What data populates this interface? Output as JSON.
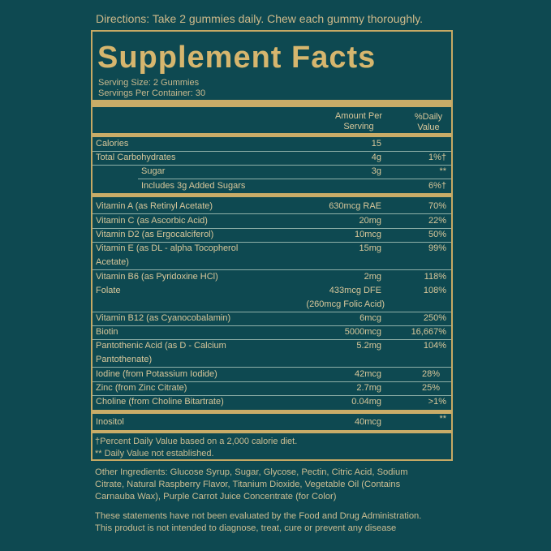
{
  "directions": "Directions: Take 2 gummies daily. Chew each gummy thoroughly.",
  "title": "Supplement Facts",
  "serving_size": "Serving Size: 2 Gummies",
  "servings_per_container": "Servings Per Container: 30",
  "header": {
    "amount": "Amount Per",
    "amount2": "Serving",
    "dv": "%Daily",
    "dv2": "Value"
  },
  "rows": [
    {
      "name": "Calories",
      "amount": "15",
      "dv": ""
    },
    {
      "name": "Total Carbohydrates",
      "amount": "4g",
      "dv": "1%†"
    },
    {
      "name": "Sugar",
      "amount": "3g",
      "dv": "**"
    },
    {
      "name": "Includes 3g Added Sugars",
      "amount": "",
      "dv": "6%†"
    },
    {
      "name": "Vitamin A (as Retinyl Acetate)",
      "amount": "630mcg RAE",
      "dv": "70%"
    },
    {
      "name": "Vitamin C (as Ascorbic Acid)",
      "amount": "20mg",
      "dv": "22%"
    },
    {
      "name": "Vitamin D2 (as Ergocalciferol)",
      "amount": "10mcg",
      "dv": "50%"
    },
    {
      "name": "Vitamin E (as DL - alpha Tocopherol",
      "name2": "Acetate)",
      "amount": "15mg",
      "dv": "99%"
    },
    {
      "name": "Vitamin B6 (as Pyridoxine HCl)",
      "amount": "2mg",
      "dv": "118%"
    },
    {
      "name": "Folate",
      "amount": "433mcg DFE",
      "amount2": "(260mcg Folic Acid)",
      "dv": "108%"
    },
    {
      "name": "Vitamin B12 (as Cyanocobalamin)",
      "amount": "6mcg",
      "dv": "250%"
    },
    {
      "name": "Biotin",
      "amount": "5000mcg",
      "dv": "16,667%"
    },
    {
      "name": "Pantothenic Acid (as D - Calcium",
      "name2": "Pantothenate)",
      "amount": "5.2mg",
      "dv": "104%"
    },
    {
      "name": "Iodine (from Potassium Iodide)",
      "amount": "42mcg",
      "dv": "28%"
    },
    {
      "name": "Zinc (from Zinc Citrate)",
      "amount": "2.7mg",
      "dv": "25%"
    },
    {
      "name": "Choline (from Choline Bitartrate)",
      "amount": "0.04mg",
      "dv": ">1%"
    },
    {
      "name": "Inositol",
      "amount": "40mcg",
      "dv": "**"
    }
  ],
  "footnotes": [
    "†Percent Daily Value based on a 2,000 calorie diet.",
    "** Daily Value not established."
  ],
  "other_ingredients": [
    "Other Ingredients: Glucose Syrup, Sugar, Glycose, Pectin, Citric Acid, Sodium",
    "Citrate, Natural Raspberry Flavor, Titanium Dioxide, Vegetable Oil (Contains",
    "Carnauba Wax), Purple Carrot Juice Concentrate (for Color)"
  ],
  "disclaimer": [
    "These statements have not been evaluated by the Food and Drug Administration.",
    "This product is not intended to diagnose, treat, cure or prevent any disease"
  ]
}
